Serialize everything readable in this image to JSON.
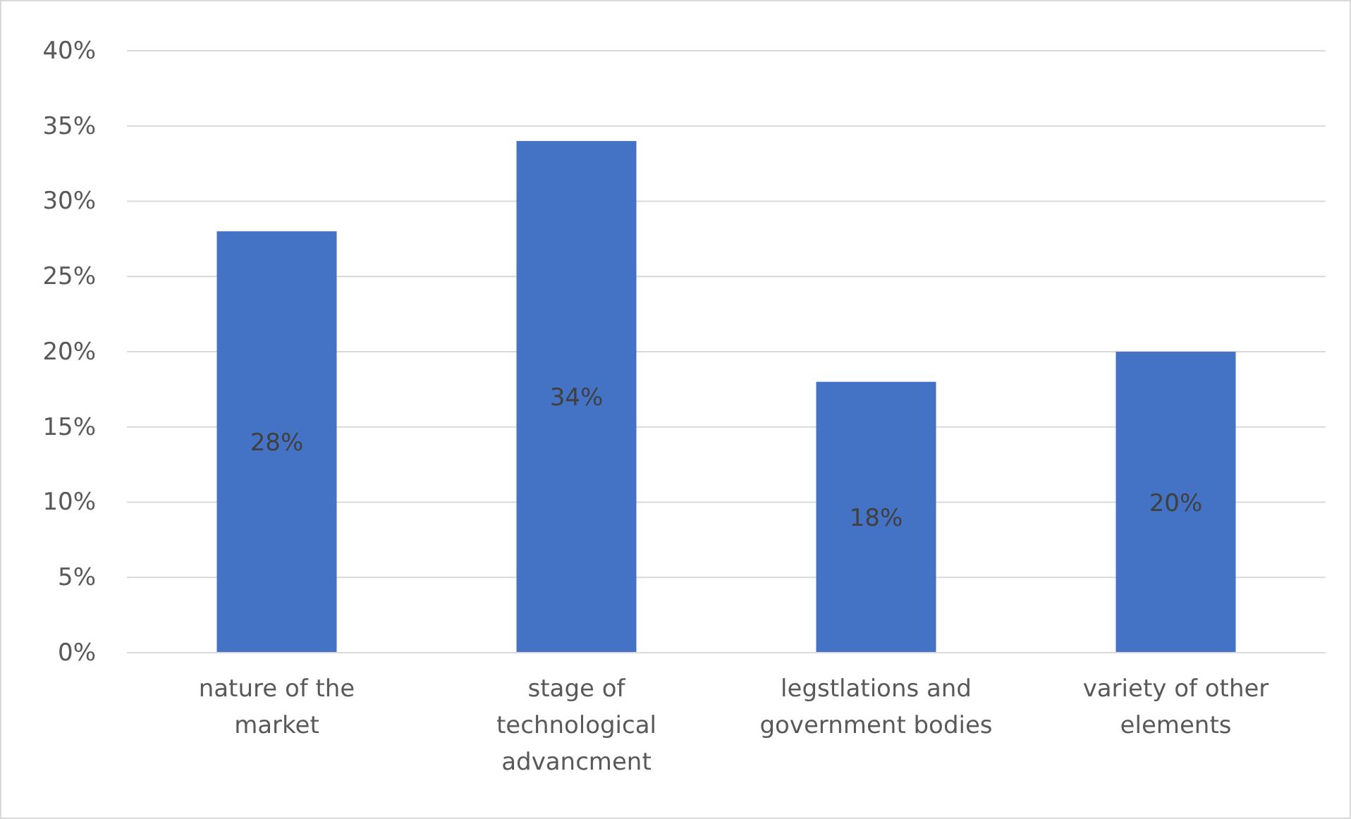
{
  "chart_data": {
    "type": "bar",
    "categories": [
      "nature of the market",
      "stage of technological advancment",
      "legstlations and government bodies",
      "variety of other elements"
    ],
    "values": [
      28,
      34,
      18,
      20
    ],
    "color": "#4472c4",
    "value_labels": [
      "28%",
      "34%",
      "18%",
      "20%"
    ],
    "ylim": [
      0,
      40
    ],
    "yticks": [
      {
        "value": 0,
        "label": "0%"
      },
      {
        "value": 5,
        "label": "5%"
      },
      {
        "value": 10,
        "label": "10%"
      },
      {
        "value": 15,
        "label": "15%"
      },
      {
        "value": 20,
        "label": "20%"
      },
      {
        "value": 25,
        "label": "25%"
      },
      {
        "value": 30,
        "label": "30%"
      },
      {
        "value": 35,
        "label": "35%"
      },
      {
        "value": 40,
        "label": "40%"
      }
    ],
    "grid": "y"
  }
}
